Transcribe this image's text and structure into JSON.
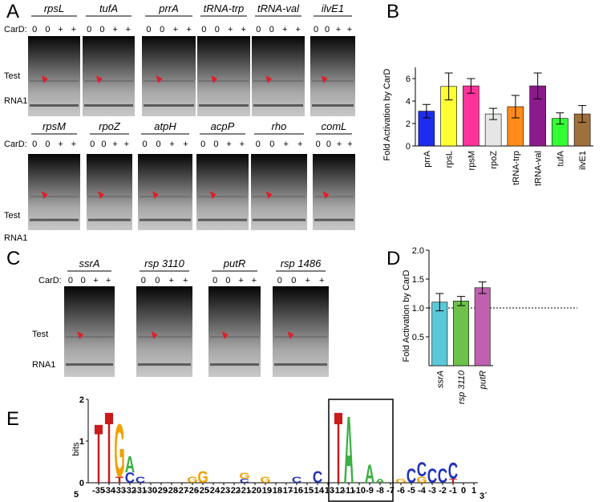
{
  "panel_labels": [
    "A",
    "B",
    "C",
    "D",
    "E"
  ],
  "gel_rows": [
    {
      "carD_label": "CarD:",
      "test_label": "Test",
      "rna1_label": "RNA1",
      "gels": [
        {
          "name": "rpsL",
          "lanes": [
            "0",
            "0",
            "+",
            "+"
          ]
        },
        {
          "name": "tufA",
          "lanes": [
            "0",
            "0",
            "+",
            "+"
          ]
        },
        {
          "name": "prrA",
          "lanes": [
            "0",
            "0",
            "+",
            "+"
          ]
        },
        {
          "name": "tRNA-trp",
          "lanes": [
            "0",
            "0",
            "+",
            "+"
          ]
        },
        {
          "name": "tRNA-val",
          "lanes": [
            "0",
            "0",
            "+",
            "+"
          ]
        },
        {
          "name": "ilvE1",
          "lanes": [
            "0",
            "0",
            "+",
            "+"
          ]
        }
      ]
    },
    {
      "carD_label": "CarD:",
      "test_label": "Test",
      "rna1_label": "RNA1",
      "gels": [
        {
          "name": "rpsM",
          "lanes": [
            "0",
            "0",
            "+",
            "+"
          ]
        },
        {
          "name": "rpoZ",
          "lanes": [
            "0",
            "0",
            "+",
            "+"
          ]
        },
        {
          "name": "atpH",
          "lanes": [
            "0",
            "0",
            "+",
            "+"
          ]
        },
        {
          "name": "acpP",
          "lanes": [
            "0",
            "0",
            "+",
            "+"
          ]
        },
        {
          "name": "rho",
          "lanes": [
            "0",
            "0",
            "+",
            "+"
          ]
        },
        {
          "name": "comL",
          "lanes": [
            "0",
            "0",
            "+",
            "+"
          ]
        }
      ]
    },
    {
      "carD_label": "CarD:",
      "test_label": "Test",
      "rna1_label": "RNA1",
      "gels": [
        {
          "name": "ssrA",
          "lanes": [
            "0",
            "0",
            "+",
            "+"
          ]
        },
        {
          "name": "rsp 3110",
          "lanes": [
            "0",
            "0",
            "+",
            "+"
          ]
        },
        {
          "name": "putR",
          "lanes": [
            "0",
            "0",
            "+",
            "+"
          ]
        },
        {
          "name": "rsp 1486",
          "lanes": [
            "0",
            "0",
            "+",
            "+"
          ]
        }
      ]
    }
  ],
  "chart_data": [
    {
      "type": "bar",
      "ylabel": "Fold Activation by CarD",
      "categories": [
        "prrA",
        "rpsL",
        "rpsM",
        "rpoZ",
        "tRNA-trp",
        "tRNA-val",
        "tufA",
        "ilvE1"
      ],
      "values": [
        3.1,
        5.3,
        5.35,
        2.85,
        3.5,
        5.35,
        2.45,
        2.85
      ],
      "errors": [
        0.6,
        1.2,
        0.65,
        0.5,
        1.0,
        1.15,
        0.5,
        0.75
      ],
      "colors": [
        "#1f2cf0",
        "#ffff33",
        "#ff3399",
        "#e6e6e6",
        "#ff8c1a",
        "#8b1a8b",
        "#33ff33",
        "#a0703c"
      ],
      "ylim": [
        0,
        7
      ],
      "yticks": [
        0,
        2,
        4,
        6
      ]
    },
    {
      "type": "bar",
      "ylabel": "Fold Activation by CarD",
      "categories": [
        "ssrA",
        "rsp 3110",
        "putR"
      ],
      "values": [
        1.1,
        1.12,
        1.35
      ],
      "errors": [
        0.15,
        0.08,
        0.1
      ],
      "colors": [
        "#5bc8d8",
        "#6cc24a",
        "#c060b0"
      ],
      "ylim": [
        0,
        2
      ],
      "yticks": [
        {
          "value": 0.5,
          "label": "0.5"
        },
        {
          "value": 1,
          "label": "1.0"
        },
        {
          "value": 1.5,
          "label": "1.5"
        },
        {
          "value": 2,
          "label": "2.0"
        }
      ],
      "refline": 1
    }
  ],
  "logo": {
    "ylabel": "bits",
    "ylim": [
      0,
      2
    ],
    "yticks": [
      0,
      1,
      2
    ],
    "xlim": [
      -36,
      2
    ],
    "xticks": [
      -35,
      -34,
      -33,
      -32,
      -31,
      -30,
      -29,
      -28,
      -27,
      -26,
      -25,
      -24,
      -23,
      -22,
      -21,
      -20,
      -19,
      -18,
      -17,
      -16,
      -15,
      -14,
      -13,
      -12,
      -11,
      -10,
      -9,
      -8,
      -7,
      -6,
      -5,
      -4,
      -3,
      -2,
      -1,
      0,
      1
    ],
    "five_prime": "5",
    "three_prime": "3´",
    "letter_colors": {
      "A": "#3cb043",
      "C": "#2233bb",
      "G": "#f0a000",
      "T": "#cc1a1a"
    },
    "stacks": [
      {
        "pos": -35,
        "letters": [
          {
            "letter": "T",
            "bits": 1.45
          }
        ]
      },
      {
        "pos": -34,
        "letters": [
          {
            "letter": "T",
            "bits": 1.75
          }
        ]
      },
      {
        "pos": -33,
        "letters": [
          {
            "letter": "T",
            "bits": 0.15
          },
          {
            "letter": "G",
            "bits": 1.3
          }
        ]
      },
      {
        "pos": -32,
        "letters": [
          {
            "letter": "C",
            "bits": 0.25
          },
          {
            "letter": "A",
            "bits": 0.4
          }
        ]
      },
      {
        "pos": -31,
        "letters": [
          {
            "letter": "C",
            "bits": 0.15
          }
        ]
      },
      {
        "pos": -26,
        "letters": [
          {
            "letter": "G",
            "bits": 0.15
          }
        ]
      },
      {
        "pos": -25,
        "letters": [
          {
            "letter": "G",
            "bits": 0.3
          }
        ]
      },
      {
        "pos": -21,
        "letters": [
          {
            "letter": "C",
            "bits": 0.1
          },
          {
            "letter": "G",
            "bits": 0.15
          }
        ]
      },
      {
        "pos": -19,
        "letters": [
          {
            "letter": "G",
            "bits": 0.15
          }
        ]
      },
      {
        "pos": -16,
        "letters": [
          {
            "letter": "C",
            "bits": 0.15
          }
        ]
      },
      {
        "pos": -14,
        "letters": [
          {
            "letter": "C",
            "bits": 0.3
          }
        ]
      },
      {
        "pos": -12,
        "letters": [
          {
            "letter": "T",
            "bits": 1.75
          }
        ]
      },
      {
        "pos": -11,
        "letters": [
          {
            "letter": "A",
            "bits": 1.65
          }
        ]
      },
      {
        "pos": -9,
        "letters": [
          {
            "letter": "A",
            "bits": 0.45
          }
        ]
      },
      {
        "pos": -8,
        "letters": [
          {
            "letter": "A",
            "bits": 0.1
          }
        ]
      },
      {
        "pos": -6,
        "letters": [
          {
            "letter": "G",
            "bits": 0.1
          }
        ]
      },
      {
        "pos": -5,
        "letters": [
          {
            "letter": "C",
            "bits": 0.35
          }
        ]
      },
      {
        "pos": -4,
        "letters": [
          {
            "letter": "G",
            "bits": 0.15
          },
          {
            "letter": "C",
            "bits": 0.35
          }
        ]
      },
      {
        "pos": -3,
        "letters": [
          {
            "letter": "C",
            "bits": 0.35
          }
        ]
      },
      {
        "pos": -2,
        "letters": [
          {
            "letter": "C",
            "bits": 0.35
          }
        ]
      },
      {
        "pos": -1,
        "letters": [
          {
            "letter": "T",
            "bits": 0.1
          },
          {
            "letter": "C",
            "bits": 0.4
          }
        ]
      }
    ]
  }
}
